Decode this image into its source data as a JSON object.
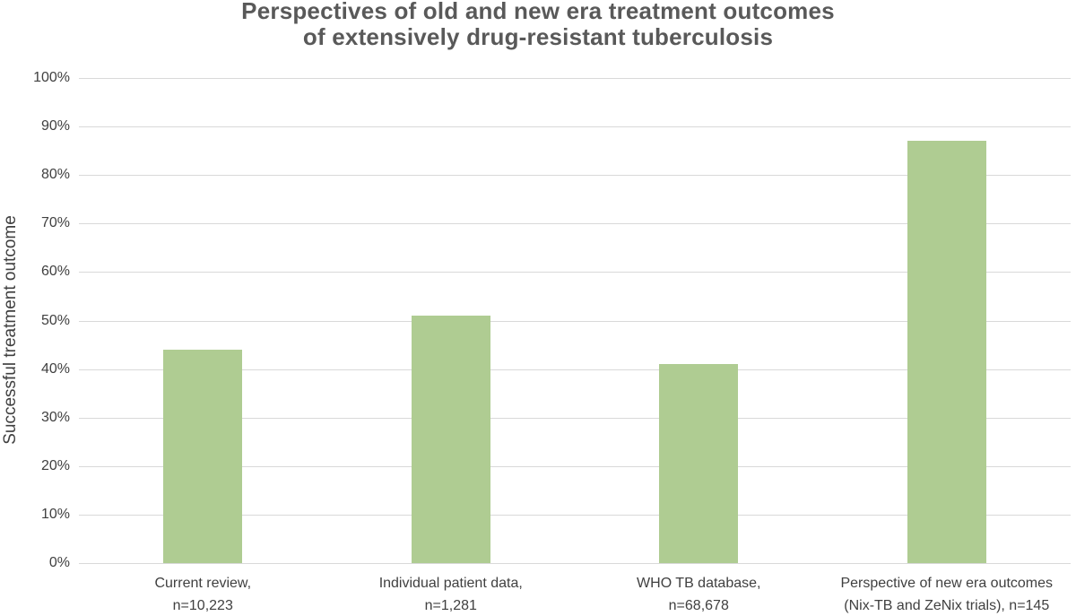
{
  "chart_data": {
    "type": "bar",
    "title_lines": [
      "Perspectives of old and new era treatment outcomes",
      "of extensively drug-resistant tuberculosis"
    ],
    "ylabel": "Successful treatment outcome",
    "xlabel": "",
    "unit": "%",
    "ylim": [
      0,
      100
    ],
    "ytick_step": 10,
    "ytick_suffix": "%",
    "grid": true,
    "legend": false,
    "categories": [
      {
        "lines": [
          "Current review,",
          "n=10,223"
        ]
      },
      {
        "lines": [
          "Individual patient data,",
          "n=1,281"
        ]
      },
      {
        "lines": [
          "WHO TB database,",
          "n=68,678"
        ]
      },
      {
        "lines": [
          "Perspective of new era outcomes",
          "(Nix-TB and ZeNix trials), n=145"
        ]
      }
    ],
    "values": [
      44,
      51,
      41,
      87
    ],
    "colors": {
      "bar": "#AFCC92",
      "gridline": "#D9D9D9",
      "title_text": "#595959",
      "axis_text": "#404040"
    }
  }
}
